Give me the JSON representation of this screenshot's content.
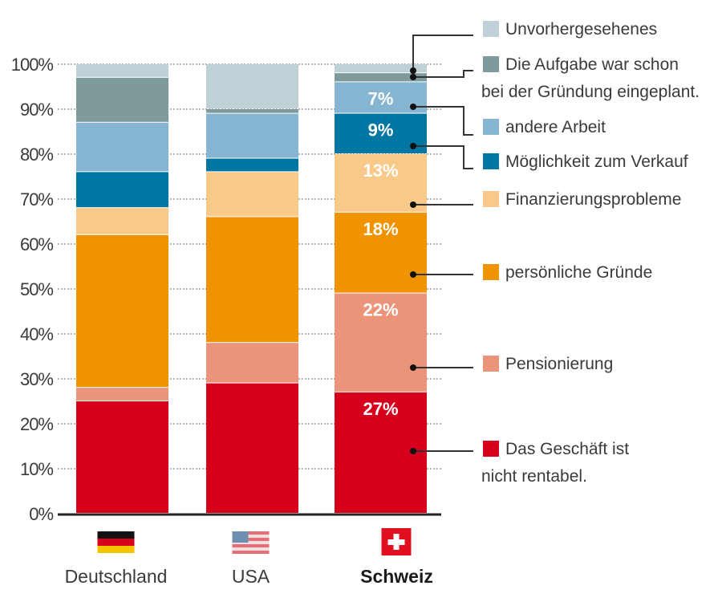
{
  "chart_data": {
    "type": "bar",
    "stacked": true,
    "title": "",
    "xlabel": "",
    "ylabel": "",
    "ylim": [
      0,
      100
    ],
    "yticks": [
      "0%",
      "10%",
      "20%",
      "30%",
      "40%",
      "50%",
      "60%",
      "70%",
      "80%",
      "90%",
      "100%"
    ],
    "grid": "dotted horizontal",
    "legend_position": "right",
    "categories": [
      "Deutschland",
      "USA",
      "Schweiz"
    ],
    "highlighted_category": "Schweiz",
    "flags": [
      "germany-flag",
      "usa-flag",
      "switzerland-flag"
    ],
    "series": [
      {
        "name": "Das Geschäft ist nicht rentabel.",
        "legend_lines": [
          "Das Geschäft ist",
          "nicht rentabel."
        ],
        "color": "#d6001c",
        "values": [
          25,
          29,
          27
        ]
      },
      {
        "name": "Pensionierung",
        "legend_lines": [
          "Pensionierung"
        ],
        "color": "#ec947a",
        "values": [
          3,
          9,
          22
        ]
      },
      {
        "name": "persönliche Gründe",
        "legend_lines": [
          "persönliche Gründe"
        ],
        "color": "#f09300",
        "values": [
          34,
          28,
          18
        ]
      },
      {
        "name": "Finanzierungsprobleme",
        "legend_lines": [
          "Finanzierungsprobleme"
        ],
        "color": "#f9c98a",
        "values": [
          6,
          10,
          13
        ]
      },
      {
        "name": "Möglichkeit zum Verkauf",
        "legend_lines": [
          "Möglichkeit zum Verkauf"
        ],
        "color": "#0077a3",
        "values": [
          8,
          3,
          9
        ]
      },
      {
        "name": "andere Arbeit",
        "legend_lines": [
          "andere Arbeit"
        ],
        "color": "#85b5d0",
        "values": [
          11,
          10,
          7
        ]
      },
      {
        "name": "Die Aufgabe war schon bei der Gründung eingeplant.",
        "legend_lines": [
          "Die Aufgabe war schon",
          "bei der Gründung eingeplant."
        ],
        "color": "#7f9a9a",
        "values": [
          10,
          1,
          2
        ]
      },
      {
        "name": "Unvorhergesehenes",
        "legend_lines": [
          "Unvorhergesehenes"
        ],
        "color": "#bfd0d6",
        "values": [
          3,
          10,
          2
        ]
      }
    ],
    "data_labels": {
      "category": "Schweiz",
      "labels": [
        "27%",
        "22%",
        "18%",
        "13%",
        "9%",
        "7%",
        "",
        ""
      ]
    }
  }
}
